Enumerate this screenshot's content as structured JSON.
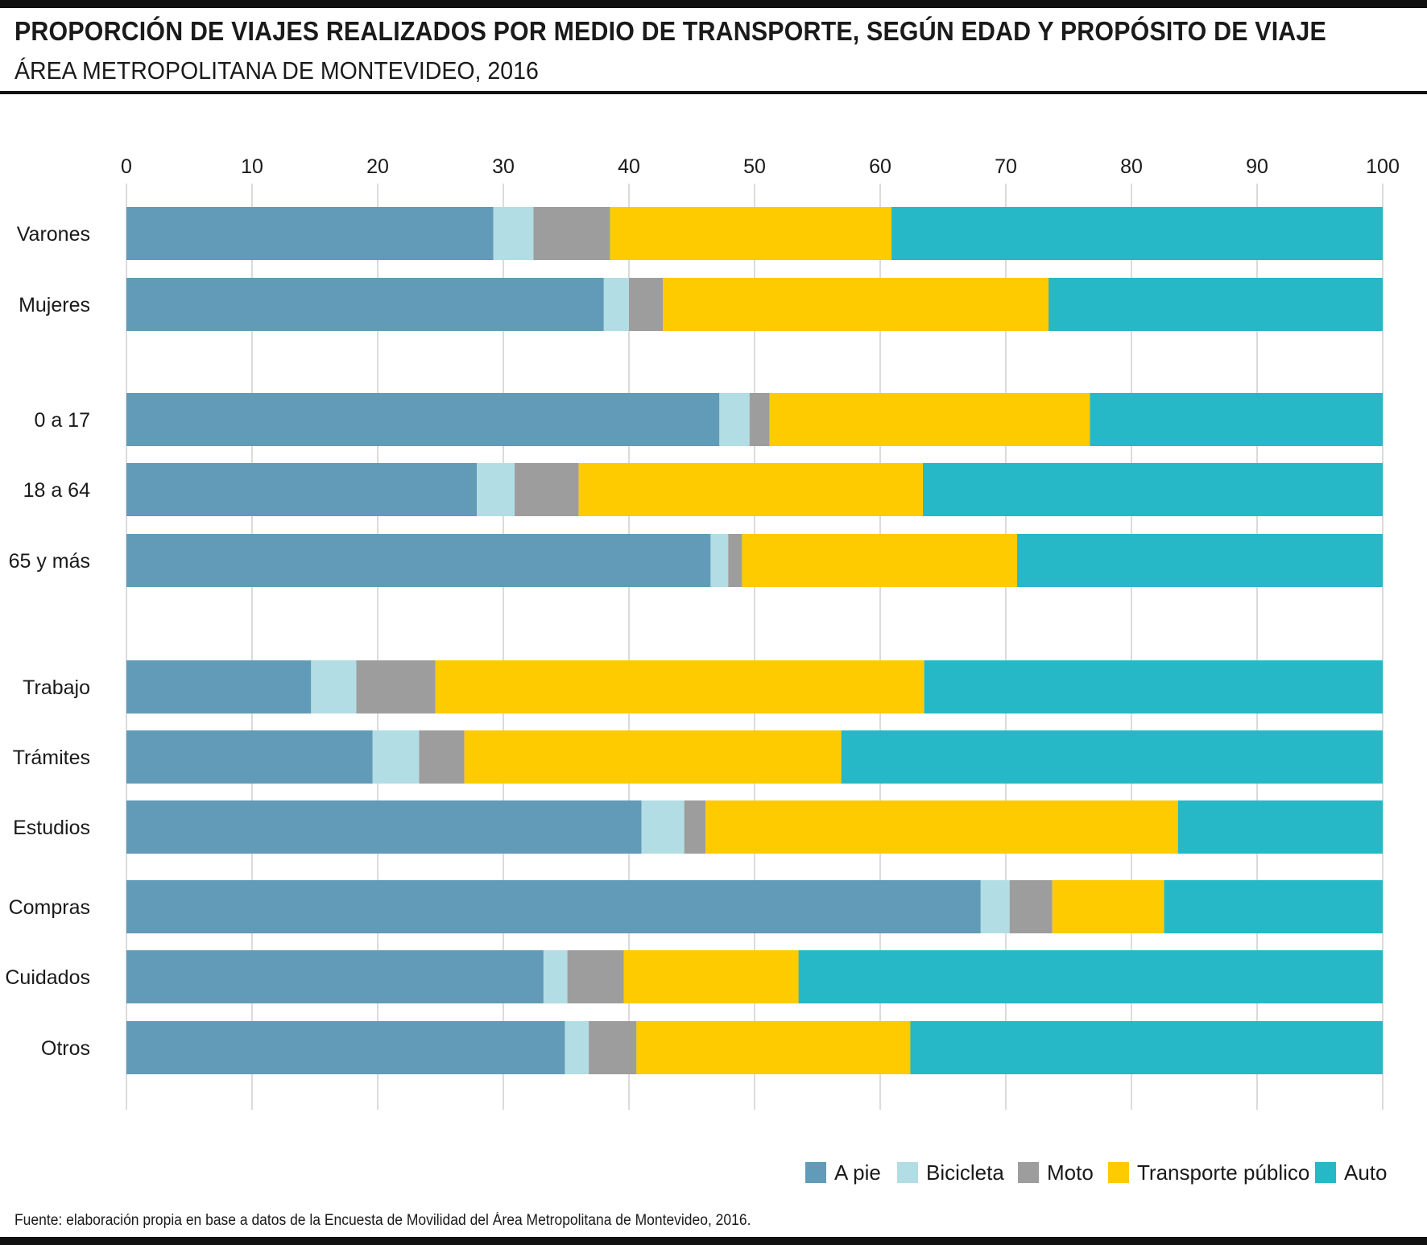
{
  "title": "PROPORCIÓN DE VIAJES REALIZADOS POR MEDIO DE TRANSPORTE, SEGÚN EDAD Y PROPÓSITO DE VIAJE",
  "subtitle": "ÁREA METROPOLITANA DE MONTEVIDEO, 2016",
  "source": "Fuente: elaboración propia en base a datos de la Encuesta de Movilidad del Área Metropolitana de Montevideo, 2016.",
  "chart_data": {
    "type": "bar",
    "orientation": "horizontal",
    "stacked": true,
    "title": "PROPORCIÓN DE VIAJES REALIZADOS POR MEDIO DE TRANSPORTE, SEGÚN EDAD Y PROPÓSITO DE VIAJE",
    "subtitle": "ÁREA METROPOLITANA DE MONTEVIDEO, 2016",
    "xlim": [
      0,
      100
    ],
    "ticks": [
      "0",
      "10",
      "20",
      "30",
      "40",
      "50",
      "60",
      "70",
      "80",
      "90",
      "100"
    ],
    "grid": true,
    "legend_position": "bottom-right",
    "categories": [
      "Varones",
      "Mujeres",
      "0 a 17",
      "18 a 64",
      "65 y más",
      "Trabajo",
      "Trámites",
      "Estudios",
      "Compras",
      "Cuidados",
      "Otros"
    ],
    "groups": [
      [
        "Varones",
        "Mujeres"
      ],
      [
        "0 a 17",
        "18 a 64",
        "65 y más"
      ],
      [
        "Trabajo",
        "Trámites",
        "Estudios",
        "Compras",
        "Cuidados",
        "Otros"
      ]
    ],
    "series": [
      {
        "name": "A pie",
        "color": "#629bb7",
        "values": [
          29.2,
          38.0,
          47.2,
          27.9,
          46.5,
          14.7,
          19.6,
          41.0,
          68.0,
          33.2,
          34.9
        ]
      },
      {
        "name": "Bicicleta",
        "color": "#b2dde4",
        "values": [
          3.2,
          2.0,
          2.4,
          3.0,
          1.4,
          3.6,
          3.7,
          3.4,
          2.3,
          1.9,
          1.9
        ]
      },
      {
        "name": "Moto",
        "color": "#9d9d9d",
        "values": [
          6.1,
          2.7,
          1.6,
          5.1,
          1.1,
          6.3,
          3.6,
          1.7,
          3.4,
          4.5,
          3.8
        ]
      },
      {
        "name": "Transporte público",
        "color": "#fecb00",
        "values": [
          22.4,
          30.7,
          25.5,
          27.4,
          21.9,
          38.9,
          30.0,
          37.6,
          8.9,
          13.9,
          21.8
        ]
      },
      {
        "name": "Auto",
        "color": "#26b8c6",
        "values": [
          39.1,
          26.6,
          23.3,
          36.6,
          29.1,
          36.5,
          43.1,
          16.3,
          17.4,
          46.5,
          37.6
        ]
      }
    ]
  }
}
